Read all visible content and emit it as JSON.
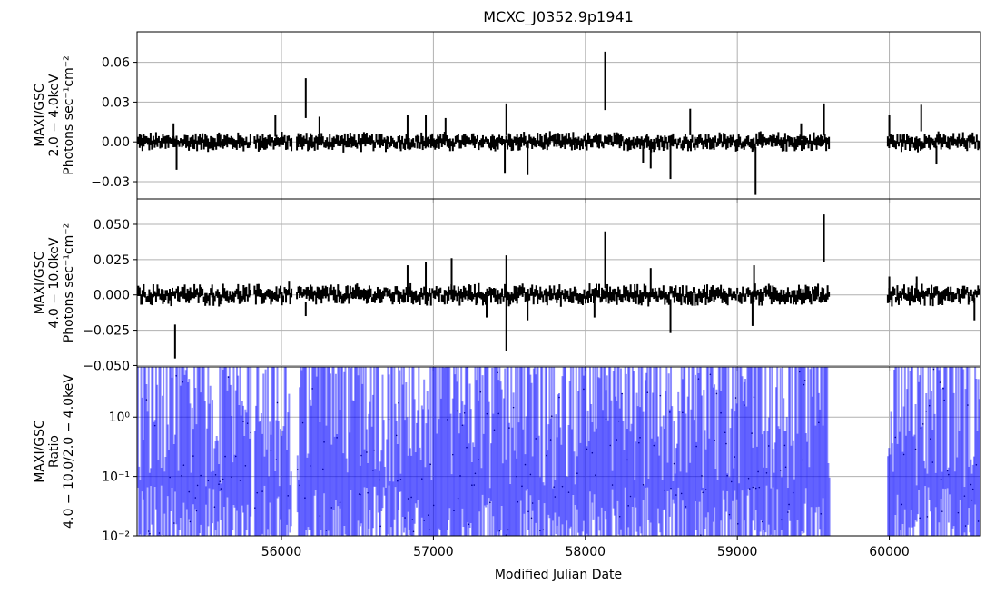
{
  "chart_data": {
    "type": "scatter",
    "title": "MCXC_J0352.9p1941",
    "xlabel": "Modified Julian Date",
    "xlim": [
      55050,
      60600
    ],
    "xticks": [
      "56000",
      "57000",
      "58000",
      "59000",
      "60000"
    ],
    "grid": true,
    "panels": [
      {
        "id": "soft",
        "ylabel_lines": [
          "MAXI/GSC",
          "2.0 − 4.0keV",
          "Photons sec⁻¹cm⁻²"
        ],
        "ylim": [
          -0.043,
          0.083
        ],
        "yticks": [
          "−0.03",
          "0.00",
          "0.03",
          "0.06"
        ],
        "scale": "linear",
        "marker_color": "#000000",
        "series": [
          {
            "name": "",
            "points": [
              {
                "x": 55290,
                "y": 0.005,
                "err": 0.009
              },
              {
                "x": 55310,
                "y": -0.009,
                "err": 0.012
              },
              {
                "x": 56160,
                "y": 0.033,
                "err": 0.015
              },
              {
                "x": 55960,
                "y": 0.012,
                "err": 0.008
              },
              {
                "x": 56250,
                "y": 0.012,
                "err": 0.007
              },
              {
                "x": 56830,
                "y": 0.01,
                "err": 0.01
              },
              {
                "x": 56950,
                "y": 0.008,
                "err": 0.012
              },
              {
                "x": 57080,
                "y": 0.01,
                "err": 0.008
              },
              {
                "x": 57480,
                "y": 0.017,
                "err": 0.012
              },
              {
                "x": 57470,
                "y": -0.012,
                "err": 0.012
              },
              {
                "x": 57620,
                "y": -0.013,
                "err": 0.012
              },
              {
                "x": 58130,
                "y": 0.046,
                "err": 0.022
              },
              {
                "x": 58380,
                "y": -0.01,
                "err": 0.006
              },
              {
                "x": 58430,
                "y": -0.013,
                "err": 0.007
              },
              {
                "x": 58560,
                "y": -0.015,
                "err": 0.013
              },
              {
                "x": 58690,
                "y": 0.015,
                "err": 0.01
              },
              {
                "x": 59120,
                "y": -0.022,
                "err": 0.018
              },
              {
                "x": 59420,
                "y": 0.008,
                "err": 0.006
              },
              {
                "x": 59570,
                "y": 0.017,
                "err": 0.012
              },
              {
                "x": 60000,
                "y": 0.012,
                "err": 0.008
              },
              {
                "x": 60210,
                "y": 0.018,
                "err": 0.01
              },
              {
                "x": 60310,
                "y": -0.01,
                "err": 0.007
              }
            ]
          }
        ]
      },
      {
        "id": "hard",
        "ylabel_lines": [
          "MAXI/GSC",
          "4.0 − 10.0keV",
          "Photons sec⁻¹cm⁻²"
        ],
        "ylim": [
          -0.051,
          0.068
        ],
        "yticks": [
          "−0.050",
          "−0.025",
          "0.000",
          "0.025",
          "0.050"
        ],
        "scale": "linear",
        "marker_color": "#000000",
        "series": [
          {
            "name": "",
            "points": [
              {
                "x": 55300,
                "y": -0.033,
                "err": 0.012
              },
              {
                "x": 56050,
                "y": 0.005,
                "err": 0.005
              },
              {
                "x": 56160,
                "y": -0.01,
                "err": 0.005
              },
              {
                "x": 56830,
                "y": 0.008,
                "err": 0.013
              },
              {
                "x": 56950,
                "y": 0.012,
                "err": 0.011
              },
              {
                "x": 57120,
                "y": 0.014,
                "err": 0.012
              },
              {
                "x": 57480,
                "y": -0.006,
                "err": 0.034
              },
              {
                "x": 57350,
                "y": -0.008,
                "err": 0.008
              },
              {
                "x": 57620,
                "y": -0.01,
                "err": 0.008
              },
              {
                "x": 58130,
                "y": 0.025,
                "err": 0.02
              },
              {
                "x": 58060,
                "y": -0.008,
                "err": 0.008
              },
              {
                "x": 58430,
                "y": 0.01,
                "err": 0.009
              },
              {
                "x": 58560,
                "y": -0.015,
                "err": 0.012
              },
              {
                "x": 59110,
                "y": 0.01,
                "err": 0.011
              },
              {
                "x": 59100,
                "y": -0.012,
                "err": 0.01
              },
              {
                "x": 59570,
                "y": 0.04,
                "err": 0.017
              },
              {
                "x": 60000,
                "y": 0.008,
                "err": 0.005
              },
              {
                "x": 60180,
                "y": 0.008,
                "err": 0.005
              },
              {
                "x": 60560,
                "y": -0.01,
                "err": 0.008
              },
              {
                "x": 60600,
                "y": -0.012,
                "err": 0.007
              }
            ]
          }
        ]
      },
      {
        "id": "ratio",
        "ylabel_lines": [
          "MAXI/GSC",
          "Ratio",
          "4.0 − 10.0/2.0 − 4.0keV"
        ],
        "ylim": [
          0.01,
          7
        ],
        "yticks": [
          "10⁻²",
          "10⁻¹",
          "10⁰"
        ],
        "scale": "log",
        "marker_color": "#0000ff",
        "bar_alpha": 0.45,
        "series": [
          {
            "name": "",
            "points": []
          }
        ]
      }
    ],
    "coverage_segments": [
      [
        55050,
        55800
      ],
      [
        55820,
        56070
      ],
      [
        56100,
        59610
      ],
      [
        59990,
        60600
      ]
    ],
    "gap": [
      59610,
      59990
    ]
  }
}
